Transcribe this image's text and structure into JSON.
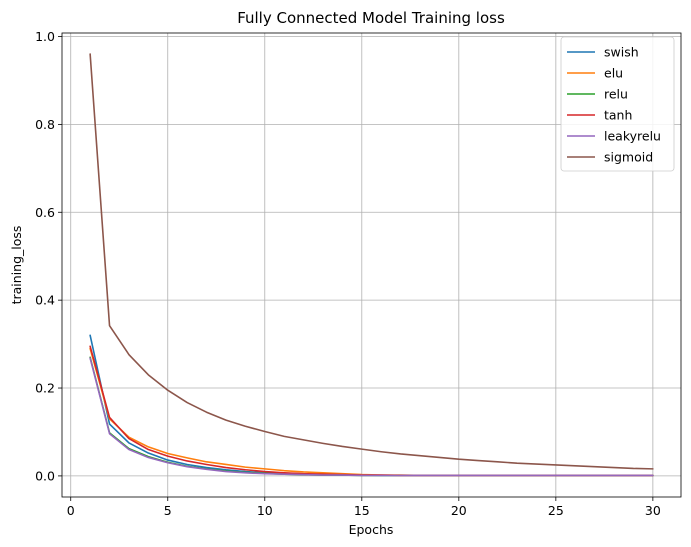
{
  "chart_data": {
    "type": "line",
    "title": "Fully Connected Model Training loss",
    "xlabel": "Epochs",
    "ylabel": "training_loss",
    "xlim": [
      -0.45,
      31.45
    ],
    "ylim": [
      -0.048,
      1.008
    ],
    "xticks": [
      0,
      5,
      10,
      15,
      20,
      25,
      30
    ],
    "yticks": [
      0.0,
      0.2,
      0.4,
      0.6,
      0.8,
      1.0
    ],
    "xtick_labels": [
      "0",
      "5",
      "10",
      "15",
      "20",
      "25",
      "30"
    ],
    "ytick_labels": [
      "0.0",
      "0.2",
      "0.4",
      "0.6",
      "0.8",
      "1.0"
    ],
    "grid": true,
    "legend": "top-right",
    "x": [
      1,
      2,
      3,
      4,
      5,
      6,
      7,
      8,
      9,
      10,
      11,
      12,
      13,
      14,
      15,
      16,
      17,
      18,
      19,
      20,
      21,
      22,
      23,
      24,
      25,
      26,
      27,
      28,
      29,
      30
    ],
    "series": [
      {
        "name": "swish",
        "color": "#1f77b4",
        "values": [
          0.32,
          0.118,
          0.075,
          0.052,
          0.036,
          0.026,
          0.019,
          0.014,
          0.01,
          0.007,
          0.005,
          0.004,
          0.003,
          0.002,
          0.002,
          0.001,
          0.001,
          0.001,
          0.001,
          0.001,
          0.001,
          0.001,
          0.001,
          0.001,
          0.001,
          0.001,
          0.001,
          0.001,
          0.001,
          0.001
        ]
      },
      {
        "name": "elu",
        "color": "#ff7f0e",
        "values": [
          0.29,
          0.13,
          0.088,
          0.066,
          0.051,
          0.041,
          0.032,
          0.026,
          0.02,
          0.016,
          0.012,
          0.009,
          0.007,
          0.005,
          0.003,
          0.002,
          0.002,
          0.001,
          0.001,
          0.001,
          0.001,
          0.001,
          0.001,
          0.001,
          0.001,
          0.001,
          0.001,
          0.001,
          0.001,
          0.001
        ]
      },
      {
        "name": "relu",
        "color": "#2ca02c",
        "values": [
          0.27,
          0.098,
          0.062,
          0.044,
          0.031,
          0.022,
          0.016,
          0.011,
          0.008,
          0.006,
          0.004,
          0.003,
          0.002,
          0.002,
          0.001,
          0.001,
          0.001,
          0.001,
          0.001,
          0.001,
          0.001,
          0.001,
          0.001,
          0.001,
          0.001,
          0.001,
          0.001,
          0.001,
          0.001,
          0.001
        ]
      },
      {
        "name": "tanh",
        "color": "#d62728",
        "values": [
          0.295,
          0.133,
          0.085,
          0.06,
          0.045,
          0.034,
          0.026,
          0.019,
          0.014,
          0.01,
          0.007,
          0.005,
          0.004,
          0.003,
          0.002,
          0.002,
          0.001,
          0.001,
          0.001,
          0.001,
          0.001,
          0.001,
          0.001,
          0.001,
          0.001,
          0.001,
          0.001,
          0.001,
          0.001,
          0.001
        ]
      },
      {
        "name": "leakyrelu",
        "color": "#9467bd",
        "values": [
          0.268,
          0.096,
          0.06,
          0.042,
          0.03,
          0.021,
          0.015,
          0.01,
          0.007,
          0.005,
          0.004,
          0.003,
          0.002,
          0.002,
          0.001,
          0.001,
          0.001,
          0.001,
          0.001,
          0.001,
          0.001,
          0.001,
          0.001,
          0.001,
          0.001,
          0.001,
          0.001,
          0.001,
          0.001,
          0.001
        ]
      },
      {
        "name": "sigmoid",
        "color": "#8c564b",
        "values": [
          0.96,
          0.342,
          0.276,
          0.23,
          0.195,
          0.167,
          0.145,
          0.127,
          0.113,
          0.101,
          0.09,
          0.082,
          0.074,
          0.067,
          0.061,
          0.055,
          0.05,
          0.046,
          0.042,
          0.038,
          0.035,
          0.032,
          0.029,
          0.027,
          0.025,
          0.023,
          0.021,
          0.019,
          0.017,
          0.016
        ]
      }
    ]
  }
}
